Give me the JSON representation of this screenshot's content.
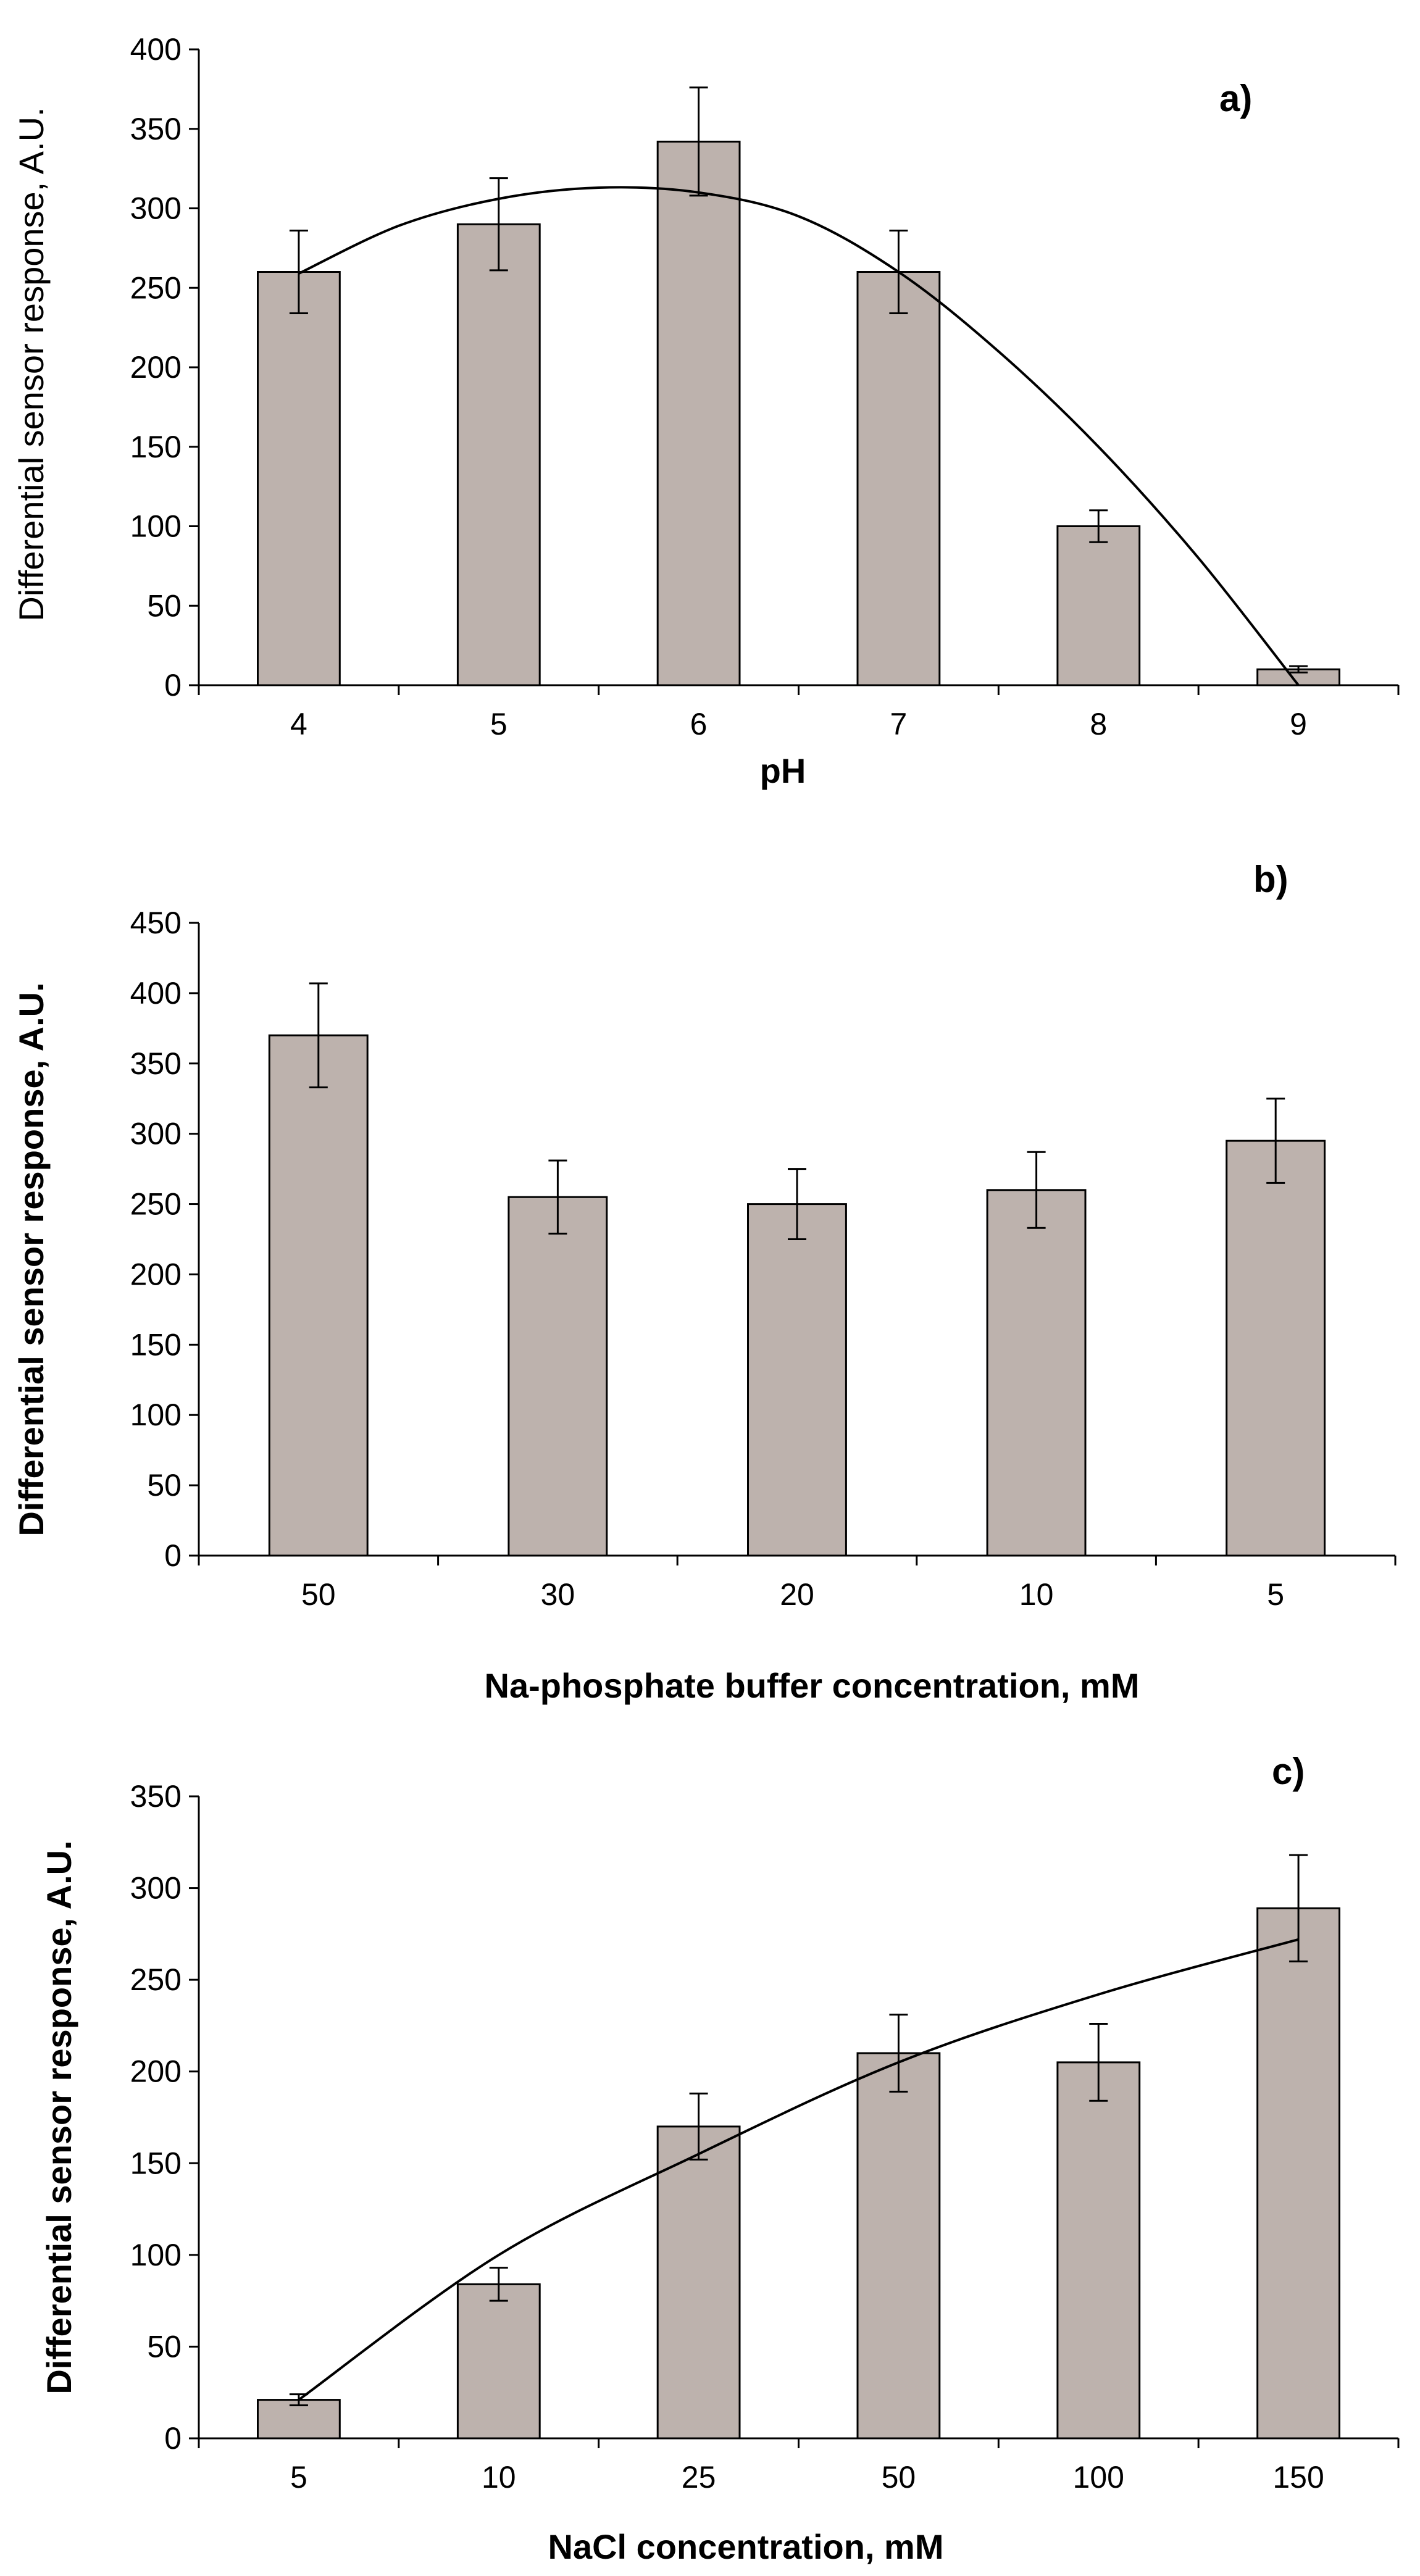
{
  "colors": {
    "bar_fill": "#bdb2ad",
    "bar_stroke": "#000000",
    "axis": "#000000",
    "trend": "#000000"
  },
  "chart_data": [
    {
      "type": "bar",
      "panel_label": "a)",
      "xlabel": "pH",
      "ylabel": "Differential  sensor response,  A.U.",
      "categories": [
        "4",
        "5",
        "6",
        "7",
        "8",
        "9"
      ],
      "values": [
        260,
        290,
        342,
        260,
        100,
        10
      ],
      "errors": [
        26,
        29,
        34,
        26,
        10,
        2
      ],
      "ylim": [
        0,
        400
      ],
      "yticks": [
        "0",
        "50",
        "100",
        "150",
        "200",
        "250",
        "300",
        "350",
        "400"
      ],
      "trendline": {
        "type": "polynomial fit",
        "x_range": [
          4,
          9
        ],
        "points": [
          [
            4,
            259
          ],
          [
            4.5,
            289
          ],
          [
            5,
            306
          ],
          [
            5.5,
            313
          ],
          [
            6,
            310
          ],
          [
            6.5,
            295
          ],
          [
            7,
            260
          ],
          [
            7.5,
            210
          ],
          [
            8,
            150
          ],
          [
            8.5,
            80
          ],
          [
            9,
            0
          ]
        ]
      },
      "grid": false
    },
    {
      "type": "bar",
      "panel_label": "b)",
      "xlabel": "Na-phosphate  buffer concentration,  mM",
      "ylabel": "Differential sensor  response,  A.U.",
      "categories": [
        "50",
        "30",
        "20",
        "10",
        "5"
      ],
      "values": [
        370,
        255,
        250,
        260,
        295
      ],
      "errors": [
        37,
        26,
        25,
        27,
        30
      ],
      "ylim": [
        0,
        450
      ],
      "yticks": [
        "0",
        "50",
        "100",
        "150",
        "200",
        "250",
        "300",
        "350",
        "400",
        "450"
      ],
      "grid": false
    },
    {
      "type": "bar",
      "panel_label": "c)",
      "xlabel": "NaCl concentration, mM",
      "ylabel": "Differential sensor response, A.U.",
      "categories": [
        "5",
        "10",
        "25",
        "50",
        "100",
        "150"
      ],
      "values": [
        21,
        84,
        170,
        210,
        205,
        289
      ],
      "errors": [
        3,
        9,
        18,
        21,
        21,
        29
      ],
      "ylim": [
        0,
        350
      ],
      "yticks": [
        "0",
        "50",
        "100",
        "150",
        "200",
        "250",
        "300",
        "350"
      ],
      "trendline": {
        "type": "fitted curve",
        "x_range": [
          5,
          150
        ],
        "points": [
          [
            5,
            21
          ],
          [
            10,
            100
          ],
          [
            25,
            155
          ],
          [
            50,
            205
          ],
          [
            100,
            242
          ],
          [
            150,
            272
          ]
        ]
      },
      "grid": false
    }
  ]
}
